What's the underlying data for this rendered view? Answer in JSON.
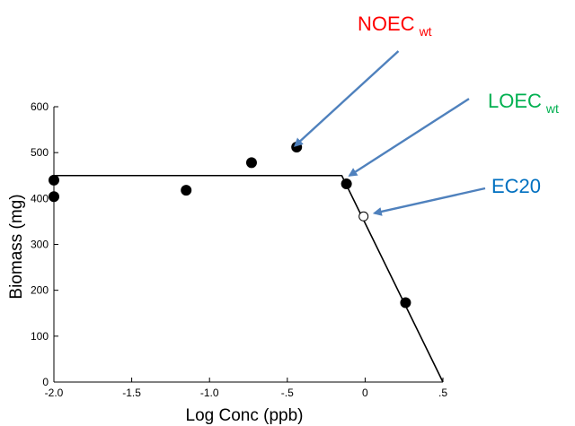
{
  "chart_data": {
    "type": "scatter",
    "xlabel": "Log Conc (ppb)",
    "ylabel": "Biomass (mg)",
    "xlim": [
      -2.0,
      0.5
    ],
    "ylim": [
      0,
      600
    ],
    "x_ticks": [
      {
        "value": -2.0,
        "label": "-2.0"
      },
      {
        "value": -1.5,
        "label": "-1.5"
      },
      {
        "value": -1.0,
        "label": "-1.0"
      },
      {
        "value": -0.5,
        "label": "-.5"
      },
      {
        "value": 0.0,
        "label": "0"
      },
      {
        "value": 0.5,
        "label": ".5"
      }
    ],
    "y_ticks": [
      {
        "value": 0,
        "label": "0"
      },
      {
        "value": 100,
        "label": "100"
      },
      {
        "value": 200,
        "label": "200"
      },
      {
        "value": 300,
        "label": "300"
      },
      {
        "value": 400,
        "label": "400"
      },
      {
        "value": 500,
        "label": "500"
      },
      {
        "value": 600,
        "label": "600"
      }
    ],
    "points": [
      {
        "x": -2.0,
        "y": 440,
        "filled": true
      },
      {
        "x": -2.0,
        "y": 404,
        "filled": true
      },
      {
        "x": -1.15,
        "y": 418,
        "filled": true
      },
      {
        "x": -0.73,
        "y": 478,
        "filled": true
      },
      {
        "x": -0.44,
        "y": 512,
        "filled": true
      },
      {
        "x": -0.12,
        "y": 432,
        "filled": true
      },
      {
        "x": 0.26,
        "y": 173,
        "filled": true
      },
      {
        "x": -0.01,
        "y": 361,
        "filled": false
      }
    ],
    "fit_line": [
      {
        "x": -2.0,
        "y": 450
      },
      {
        "x": -0.15,
        "y": 450
      },
      {
        "x": 0.5,
        "y": 0
      }
    ],
    "annotations": [
      {
        "id": "noec",
        "main": "NOEC",
        "sub": "wt",
        "color": "#ff0000",
        "arrow_to": {
          "x": -0.45,
          "y": 515
        }
      },
      {
        "id": "loec",
        "main": "LOEC",
        "sub": "wt",
        "color": "#00b050",
        "arrow_to": {
          "x": -0.1,
          "y": 450
        }
      },
      {
        "id": "ec20",
        "main": "EC20",
        "sub": "",
        "color": "#0070c0",
        "arrow_to": {
          "x": 0.06,
          "y": 368
        }
      }
    ],
    "arrow_color": "#4f81bd",
    "grid": false,
    "legend": "none"
  }
}
